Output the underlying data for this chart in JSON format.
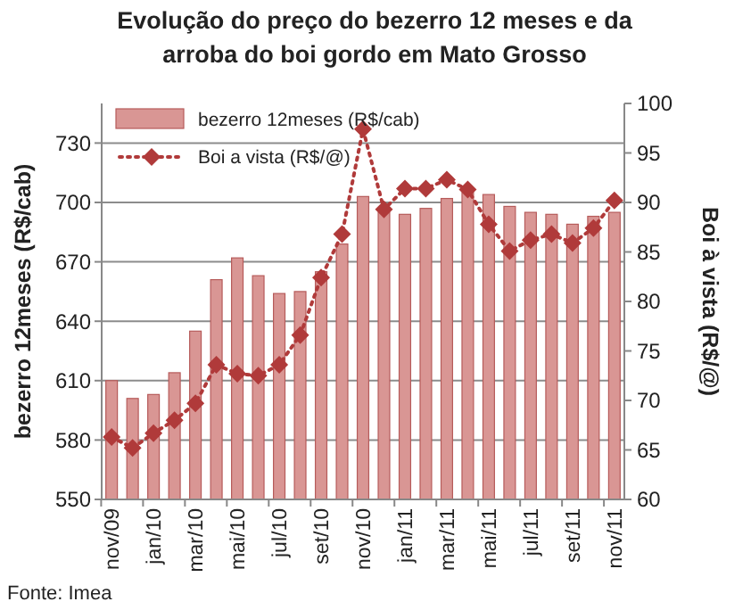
{
  "chart_data": {
    "type": "bar",
    "title": "Evolução do preço do bezerro 12 meses e da\narroba do boi gordo em Mato Grosso",
    "categories": [
      "nov/09",
      null,
      "jan/10",
      null,
      "mar/10",
      null,
      "mai/10",
      null,
      "jul/10",
      null,
      "set/10",
      null,
      "nov/10",
      null,
      "jan/11",
      null,
      "mar/11",
      null,
      "mai/11",
      null,
      "jul/11",
      null,
      "set/11",
      null,
      "nov/11"
    ],
    "series": [
      {
        "name": "bezerro 12meses (R$/cab)",
        "color": "#d99694",
        "values": [
          610,
          601,
          603,
          614,
          635,
          661,
          672,
          663,
          654,
          655,
          665,
          679,
          703,
          695,
          694,
          697,
          702,
          705,
          704,
          698,
          695,
          694,
          689,
          693,
          695
        ]
      },
      {
        "name": "Boi a vista (R$/@)",
        "type": "line",
        "axis": "y2",
        "color": "#b03a3a",
        "marker": "diamond",
        "line_style": "dotted",
        "values": [
          66.3,
          65.2,
          66.7,
          68.0,
          69.7,
          73.6,
          72.7,
          72.5,
          73.6,
          76.6,
          82.4,
          86.8,
          97.4,
          89.3,
          91.4,
          91.4,
          92.3,
          91.3,
          87.8,
          85.1,
          86.2,
          86.8,
          85.9,
          87.4,
          90.2
        ]
      }
    ],
    "ylabel": "bezerro 12meses (R$/cab)",
    "y2label": "Boi à vista (R$/@)",
    "ylim": [
      550,
      750
    ],
    "yticks": [
      550,
      580,
      610,
      640,
      670,
      700,
      730
    ],
    "y2lim": [
      60,
      100
    ],
    "y2ticks": [
      60,
      65,
      70,
      75,
      80,
      85,
      90,
      95,
      100
    ],
    "grid": "y",
    "legend": "top left",
    "annotations": [
      "Fonte: Imea"
    ]
  }
}
